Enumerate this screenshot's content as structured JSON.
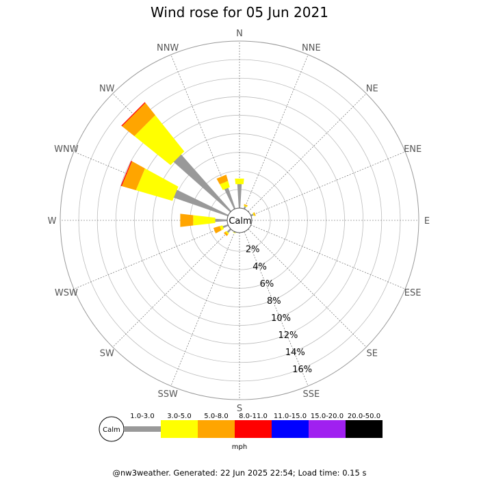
{
  "title": "Wind rose for 05 Jun 2021",
  "footer": "@nw3weather. Generated: 22 Jun 2025 22:54; Load time: 0.15 s",
  "chart_data": {
    "type": "windrose",
    "title": "Wind rose for 05 Jun 2021",
    "calm_label": "Calm",
    "calm_percent": 2,
    "directions": [
      "N",
      "NNE",
      "NE",
      "ENE",
      "E",
      "ESE",
      "SE",
      "SSE",
      "S",
      "SSW",
      "SW",
      "WSW",
      "W",
      "WNW",
      "NW",
      "NNW"
    ],
    "radial_ticks": [
      2,
      4,
      6,
      8,
      10,
      12,
      14,
      16
    ],
    "radial_tick_labels": [
      "2%",
      "4%",
      "6%",
      "8%",
      "10%",
      "12%",
      "14%",
      "16%"
    ],
    "rmax": 18,
    "speed_unit": "mph",
    "speed_bins": [
      {
        "label": "1.0-3.0",
        "color": "#999999"
      },
      {
        "label": "3.0-5.0",
        "color": "#ffff00"
      },
      {
        "label": "5.0-8.0",
        "color": "#ffa500"
      },
      {
        "label": "8.0-11.0",
        "color": "#ff0000"
      },
      {
        "label": "11.0-15.0",
        "color": "#0000ff"
      },
      {
        "label": "15.0-20.0",
        "color": "#a020f0"
      },
      {
        "label": "20.0-50.0",
        "color": "#000000"
      }
    ],
    "bars": [
      {
        "dir": "N",
        "segments": [
          2.6,
          0.6,
          0,
          0,
          0,
          0,
          0
        ]
      },
      {
        "dir": "NNE",
        "segments": [
          0.3,
          0.1,
          0.1,
          0,
          0,
          0,
          0
        ]
      },
      {
        "dir": "ENE",
        "segments": [
          0.3,
          0.1,
          0.1,
          0,
          0,
          0,
          0
        ]
      },
      {
        "dir": "SSW",
        "segments": [
          0.1,
          0.05,
          0,
          0,
          0,
          0,
          0
        ]
      },
      {
        "dir": "SW",
        "segments": [
          0.5,
          0.15,
          0.2,
          0,
          0,
          0,
          0
        ]
      },
      {
        "dir": "WSW",
        "segments": [
          0.6,
          0.3,
          0.7,
          0,
          0,
          0,
          0
        ]
      },
      {
        "dir": "W",
        "segments": [
          1.3,
          2.4,
          1.4,
          0,
          0,
          0,
          0
        ]
      },
      {
        "dir": "WNW",
        "segments": [
          6.2,
          4.1,
          1.6,
          0.1,
          0,
          0,
          0
        ]
      },
      {
        "dir": "NW",
        "segments": [
          8.2,
          5.0,
          1.7,
          0.1,
          0,
          0,
          0
        ]
      },
      {
        "dir": "NNW",
        "segments": [
          2.4,
          0.7,
          0.7,
          0,
          0,
          0,
          0
        ]
      }
    ]
  }
}
